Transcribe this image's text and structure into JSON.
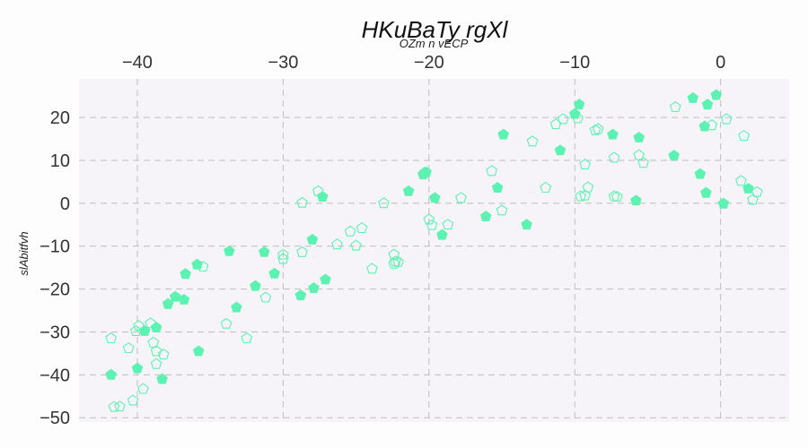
{
  "chart_data": {
    "type": "scatter",
    "title": "HKuBaTy rgXl",
    "subtitle": "OZm n vECP",
    "xlabel": "",
    "ylabel": "slAbitfvh",
    "xlim": [
      -44,
      4.7
    ],
    "ylim": [
      -51,
      29
    ],
    "x_ticks": [
      -40,
      -30,
      -20,
      -10,
      0
    ],
    "y_ticks": [
      20,
      10,
      0,
      -10,
      -20,
      -30,
      -40,
      -50
    ],
    "x_axis_position": "top",
    "grid": true,
    "legend": "none",
    "colors": {
      "marker": "#5cf2b2",
      "plot_bg": "#f6f4f8",
      "grid": "#bdbdbd",
      "page_bg": "#fdfdfd"
    },
    "series": [
      {
        "marker": "filled-pentagon",
        "points": [
          [
            -41.8,
            -40
          ],
          [
            -40,
            -38.5
          ],
          [
            -39.5,
            -29.8
          ],
          [
            -38.7,
            -29
          ],
          [
            -38.3,
            -41
          ],
          [
            -37.9,
            -23.5
          ],
          [
            -37.4,
            -21.8
          ],
          [
            -36.8,
            -22.5
          ],
          [
            -36.7,
            -16.5
          ],
          [
            -35.9,
            -14.3
          ],
          [
            -35.8,
            -34.5
          ],
          [
            -33.7,
            -11.2
          ],
          [
            -33.2,
            -24.3
          ],
          [
            -31.9,
            -19.3
          ],
          [
            -31.3,
            -11.4
          ],
          [
            -30.6,
            -16.4
          ],
          [
            -28.8,
            -21.5
          ],
          [
            -28,
            -8.5
          ],
          [
            -27.9,
            -19.8
          ],
          [
            -27.3,
            1.5
          ],
          [
            -27.1,
            -17.8
          ],
          [
            -21.4,
            2.8
          ],
          [
            -20.4,
            6.7
          ],
          [
            -20.2,
            7.2
          ],
          [
            -19.6,
            1.2
          ],
          [
            -19.1,
            -7.4
          ],
          [
            -16.1,
            -3.1
          ],
          [
            -15.3,
            3.6
          ],
          [
            -14.9,
            16
          ],
          [
            -13.3,
            -5
          ],
          [
            -11,
            12.3
          ],
          [
            -10,
            20.8
          ],
          [
            -9.7,
            23
          ],
          [
            -7.4,
            16
          ],
          [
            -5.8,
            0.6
          ],
          [
            -5.6,
            15.3
          ],
          [
            -3.2,
            11.1
          ],
          [
            -1.9,
            24.5
          ],
          [
            -1.4,
            6.8
          ],
          [
            -1.1,
            17.9
          ],
          [
            -1,
            2.4
          ],
          [
            -0.9,
            23
          ],
          [
            -0.3,
            25.2
          ],
          [
            0.2,
            -0.1
          ],
          [
            1.9,
            3.4
          ]
        ]
      },
      {
        "marker": "hollow-pentagon",
        "points": [
          [
            -41.8,
            -31.5
          ],
          [
            -41.6,
            -47.5
          ],
          [
            -41.2,
            -47.4
          ],
          [
            -40.6,
            -33.8
          ],
          [
            -40.3,
            -46
          ],
          [
            -40.1,
            -29.8
          ],
          [
            -39.9,
            -28.6
          ],
          [
            -39.6,
            -43.3
          ],
          [
            -39.1,
            -28
          ],
          [
            -38.9,
            -32.5
          ],
          [
            -38.7,
            -34.5
          ],
          [
            -38.7,
            -37.5
          ],
          [
            -38.2,
            -35.3
          ],
          [
            -35.5,
            -14.8
          ],
          [
            -33.9,
            -28.1
          ],
          [
            -32.5,
            -31.5
          ],
          [
            -31.2,
            -22
          ],
          [
            -30,
            -13
          ],
          [
            -30,
            -12
          ],
          [
            -28.7,
            0.1
          ],
          [
            -28.7,
            -11.4
          ],
          [
            -27.6,
            2.8
          ],
          [
            -26.3,
            -9.6
          ],
          [
            -25.4,
            -6.6
          ],
          [
            -25,
            -9.9
          ],
          [
            -24.6,
            -5.8
          ],
          [
            -23.9,
            -15.3
          ],
          [
            -23.1,
            0
          ],
          [
            -22.4,
            -14.1
          ],
          [
            -22.4,
            -12
          ],
          [
            -22.3,
            -13.6
          ],
          [
            -22.1,
            -13.7
          ],
          [
            -20.3,
            7.1
          ],
          [
            -20,
            -3.8
          ],
          [
            -19.8,
            -5.1
          ],
          [
            -18.7,
            -5
          ],
          [
            -17.8,
            1.2
          ],
          [
            -15.7,
            7.5
          ],
          [
            -15,
            -1.7
          ],
          [
            -12.9,
            14.4
          ],
          [
            -12,
            3.6
          ],
          [
            -11.3,
            18.4
          ],
          [
            -10.8,
            19.6
          ],
          [
            -9.8,
            19.8
          ],
          [
            -9.6,
            1.6
          ],
          [
            -9.3,
            9
          ],
          [
            -9.3,
            1.8
          ],
          [
            -9.1,
            3.7
          ],
          [
            -8.6,
            17
          ],
          [
            -8.4,
            17.3
          ],
          [
            -7.3,
            10.6
          ],
          [
            -7.3,
            1.6
          ],
          [
            -7.1,
            1.5
          ],
          [
            -5.6,
            11.2
          ],
          [
            -5.3,
            9.4
          ],
          [
            -3.1,
            22.4
          ],
          [
            -0.6,
            18.2
          ],
          [
            0.4,
            19.6
          ],
          [
            1.4,
            5.2
          ],
          [
            1.6,
            15.7
          ],
          [
            2.2,
            0.8
          ],
          [
            2.5,
            2.6
          ]
        ]
      }
    ]
  }
}
